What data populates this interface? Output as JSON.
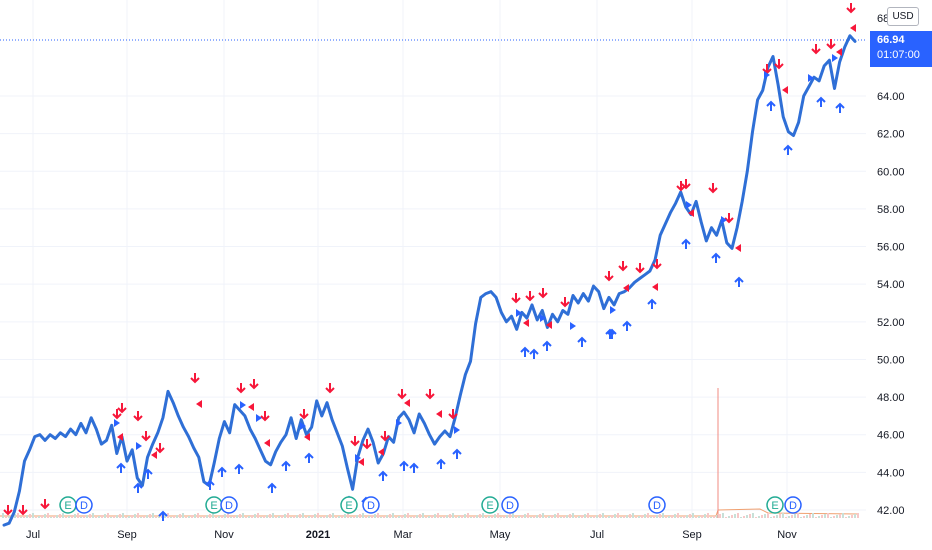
{
  "chart_data": {
    "type": "line",
    "y_axis_ticks": [
      "42.00",
      "44.00",
      "46.00",
      "48.00",
      "50.00",
      "52.00",
      "54.00",
      "56.00",
      "58.00",
      "60.00",
      "62.00",
      "64.00"
    ],
    "y_axis_top_partial": "68",
    "x_axis_ticks": [
      "Jul",
      "Sep",
      "Nov",
      "2021",
      "Mar",
      "May",
      "Jul",
      "Sep",
      "Nov"
    ],
    "x_axis_bold": "2021",
    "ylim": [
      41.5,
      67.5
    ],
    "currency": "USD",
    "last_price": "66.94",
    "countdown": "01:07:00",
    "line_color": "#2f6fd6",
    "sell_color": "#f7173a",
    "buy_color": "#2962ff",
    "series": [
      {
        "values": [
          41.2,
          41.3,
          41.9,
          43.0,
          44.6,
          45.2,
          45.9,
          46.0,
          45.7,
          46.0,
          45.8,
          46.1,
          45.9,
          46.3,
          46.0,
          46.6,
          46.1,
          46.9,
          46.3,
          45.5,
          45.7,
          46.5,
          45.0,
          45.9,
          44.6,
          45.2,
          43.7,
          43.3,
          44.8,
          45.5,
          46.1,
          46.9,
          48.3,
          47.7,
          47.0,
          46.4,
          45.9,
          45.3,
          44.8,
          43.5,
          43.3,
          44.5,
          45.8,
          46.7,
          46.1,
          47.6,
          47.3,
          47.0,
          46.3,
          45.8,
          45.2,
          44.6,
          44.4,
          45.1,
          45.6,
          46.0,
          46.9,
          45.8,
          46.8,
          46.0,
          46.4,
          47.8,
          47.0,
          47.7,
          46.8,
          46.1,
          45.4,
          44.2,
          43.1,
          44.8,
          45.7,
          46.3,
          45.6,
          44.5,
          45.0,
          45.9,
          45.6,
          46.9,
          47.2,
          46.8,
          46.1,
          47.1,
          46.6,
          46.0,
          45.5,
          45.9,
          46.2,
          45.9,
          46.9,
          48.1,
          49.2,
          49.9,
          51.9,
          53.3,
          53.5,
          53.6,
          53.3,
          52.5,
          52.0,
          52.3,
          51.6,
          52.5,
          52.2,
          52.9,
          52.1,
          52.6,
          51.7,
          52.4,
          52.0,
          52.6,
          52.4,
          53.4,
          53.0,
          53.5,
          53.1,
          53.9,
          53.6,
          52.7,
          53.3,
          52.9,
          53.5,
          53.6,
          53.8,
          54.1,
          54.3,
          54.5,
          54.7,
          55.3,
          56.6,
          57.2,
          57.8,
          58.3,
          58.9,
          58.1,
          57.7,
          58.4,
          57.3,
          56.3,
          57.0,
          56.6,
          57.4,
          56.2,
          55.9,
          57.0,
          58.4,
          60.0,
          62.1,
          63.8,
          64.3,
          65.5,
          66.1,
          64.6,
          62.9,
          62.1,
          61.9,
          62.6,
          64.0,
          64.5,
          65.0,
          64.8,
          65.6,
          65.9,
          64.4,
          65.8,
          66.6,
          67.2,
          66.9
        ]
      }
    ],
    "event_badges": [
      {
        "kind": "earnings",
        "letter": "E",
        "color": "#22ab94"
      },
      {
        "kind": "dividend",
        "letter": "D",
        "color": "#2962ff"
      }
    ]
  }
}
